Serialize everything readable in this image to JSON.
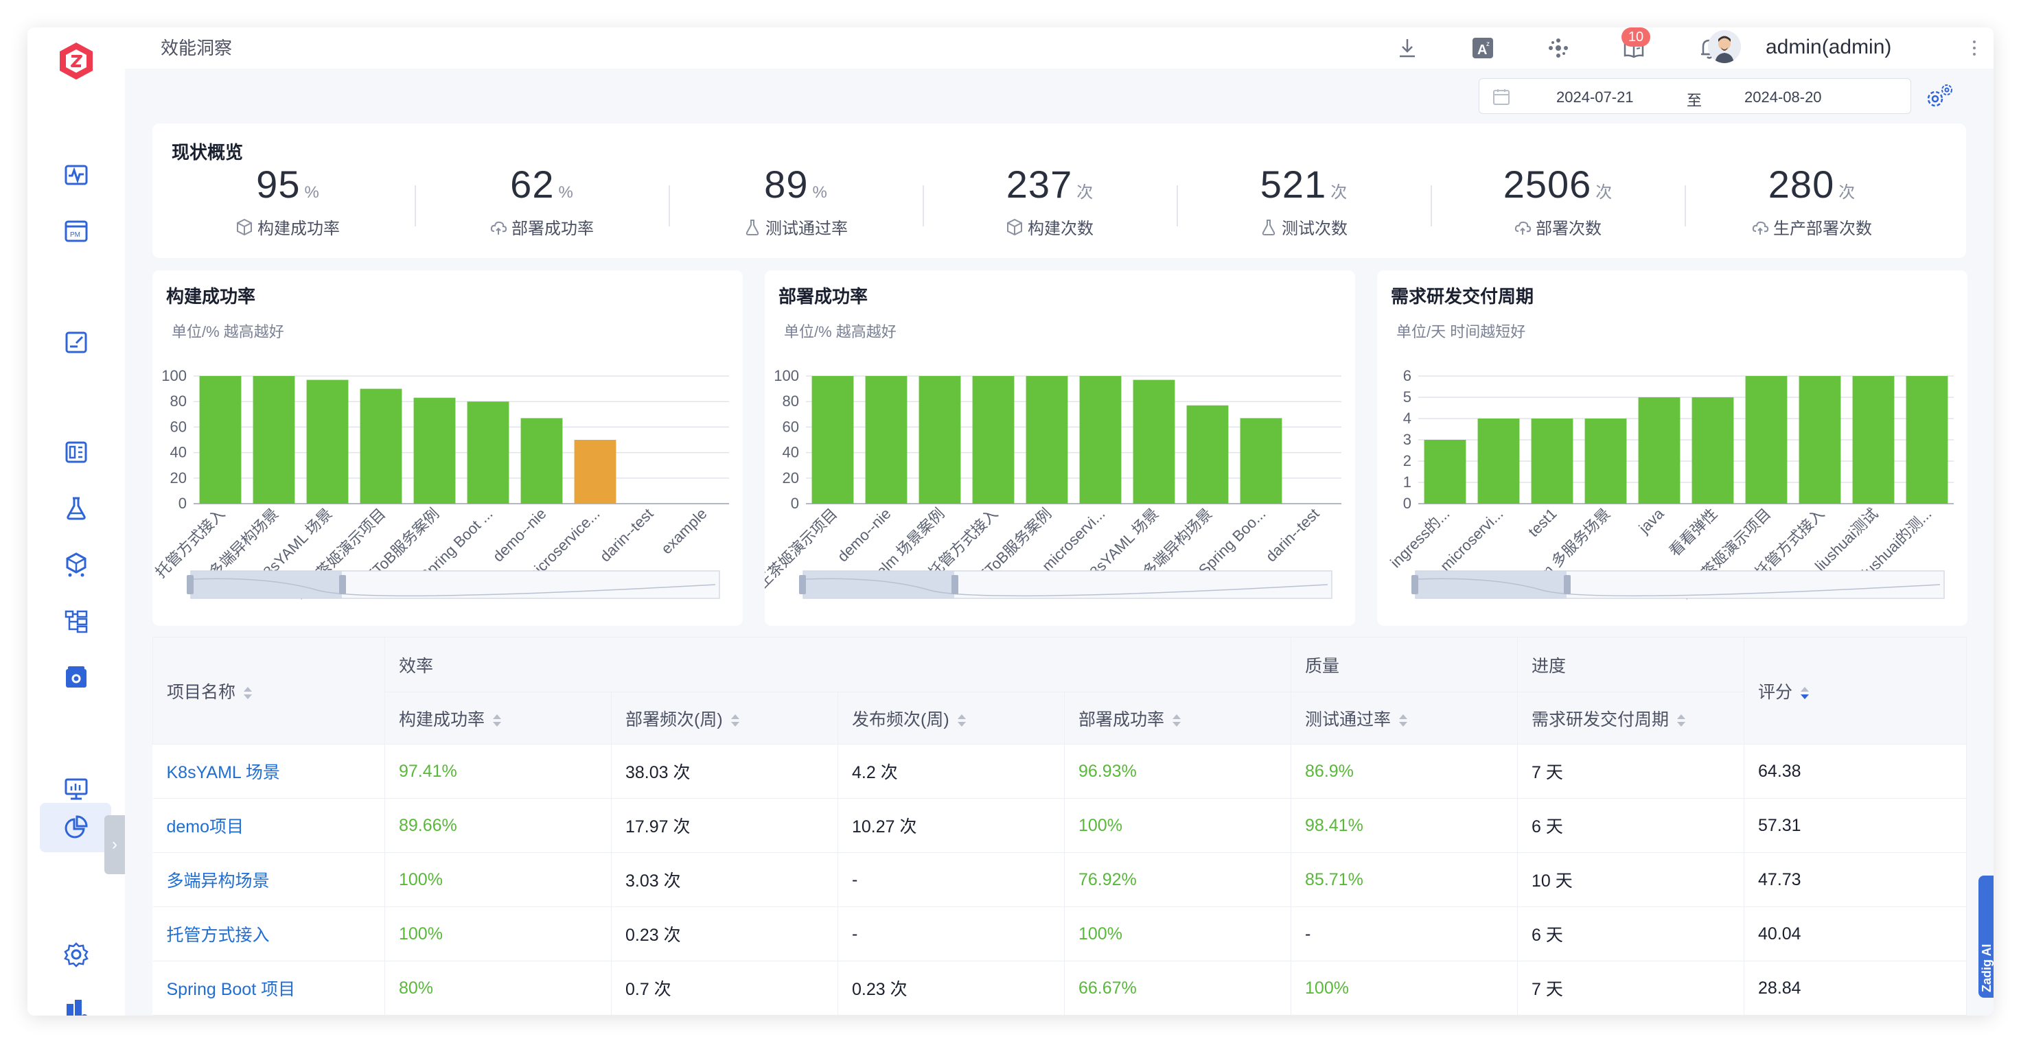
{
  "topbar": {
    "page_title": "效能洞察",
    "notification_count": "10",
    "username": "admin(admin)"
  },
  "date_range": {
    "start": "2024-07-21",
    "separator": "至",
    "end": "2024-08-20"
  },
  "overview": {
    "title": "现状概览",
    "stats": [
      {
        "value": "95",
        "unit": "%",
        "label": "构建成功率",
        "icon": "cube-icon"
      },
      {
        "value": "62",
        "unit": "%",
        "label": "部署成功率",
        "icon": "cloud-icon"
      },
      {
        "value": "89",
        "unit": "%",
        "label": "测试通过率",
        "icon": "flask-icon"
      },
      {
        "value": "237",
        "unit": "次",
        "label": "构建次数",
        "icon": "cube-icon"
      },
      {
        "value": "521",
        "unit": "次",
        "label": "测试次数",
        "icon": "flask-icon"
      },
      {
        "value": "2506",
        "unit": "次",
        "label": "部署次数",
        "icon": "cloud-icon"
      },
      {
        "value": "280",
        "unit": "次",
        "label": "生产部署次数",
        "icon": "cloud-icon"
      }
    ]
  },
  "chart_data": [
    {
      "type": "bar",
      "title": "构建成功率",
      "subtitle": "单位/% 越高越好",
      "categories": [
        "托管方式接入",
        "多端异构场景",
        "K8sYAML 场景",
        "霸王茶姬演示项目",
        "医疗ToB服务案例",
        "Spring Boot ...",
        "demo--nie",
        "microservice...",
        "darin--test",
        "example"
      ],
      "values": [
        100,
        100,
        97,
        90,
        83,
        80,
        67,
        50,
        0,
        0
      ],
      "highlight_color": "#e8a33a",
      "bar_color": "#66c23c",
      "ylim": [
        0,
        100
      ],
      "yticks": [
        0,
        20,
        40,
        60,
        80,
        100
      ]
    },
    {
      "type": "bar",
      "title": "部署成功率",
      "subtitle": "单位/% 越高越好",
      "categories": [
        "霸王茶姬演示项目",
        "demo--nie",
        "Helm 场景案例",
        "托管方式接入",
        "医疗ToB服务案例",
        "microservi...",
        "K8sYAML 场景",
        "多端异构场景",
        "Spring Boo...",
        "darin--test"
      ],
      "values": [
        100,
        100,
        100,
        100,
        100,
        100,
        97,
        77,
        67,
        0
      ],
      "bar_color": "#66c23c",
      "ylim": [
        0,
        100
      ],
      "yticks": [
        0,
        20,
        40,
        60,
        80,
        100
      ]
    },
    {
      "type": "bar",
      "title": "需求研发交付周期",
      "subtitle": "单位/天 时间越短好",
      "categories": [
        "ingress的...",
        "microservi...",
        "test1",
        "Helm 多服务场景",
        "java",
        "看看弹性",
        "霸王茶姬演示项目",
        "托管方式接入",
        "liushuai测试",
        "liushuai的测..."
      ],
      "values": [
        3,
        4,
        4,
        4,
        5,
        5,
        6,
        6,
        6,
        6
      ],
      "bar_color": "#66c23c",
      "ylim": [
        0,
        6
      ],
      "yticks": [
        0,
        1,
        2,
        3,
        4,
        5,
        6
      ]
    }
  ],
  "table": {
    "headers": {
      "project": "项目名称",
      "group_efficiency": "效率",
      "group_quality": "质量",
      "group_progress": "进度",
      "score": "评分",
      "build_rate": "构建成功率",
      "deploy_freq": "部署频次(周)",
      "release_freq": "发布频次(周)",
      "deploy_rate": "部署成功率",
      "test_rate": "测试通过率",
      "cycle": "需求研发交付周期"
    },
    "rows": [
      {
        "name": "K8sYAML 场景",
        "build_rate": "97.41%",
        "deploy_freq": "38.03 次",
        "release_freq": "4.2 次",
        "deploy_rate": "96.93%",
        "test_rate": "86.9%",
        "cycle": "7 天",
        "score": "64.38"
      },
      {
        "name": "demo项目",
        "build_rate": "89.66%",
        "deploy_freq": "17.97 次",
        "release_freq": "10.27 次",
        "deploy_rate": "100%",
        "test_rate": "98.41%",
        "cycle": "6 天",
        "score": "57.31"
      },
      {
        "name": "多端异构场景",
        "build_rate": "100%",
        "deploy_freq": "3.03 次",
        "release_freq": "-",
        "deploy_rate": "76.92%",
        "test_rate": "85.71%",
        "cycle": "10 天",
        "score": "47.73"
      },
      {
        "name": "托管方式接入",
        "build_rate": "100%",
        "deploy_freq": "0.23 次",
        "release_freq": "-",
        "deploy_rate": "100%",
        "test_rate": "-",
        "cycle": "6 天",
        "score": "40.04"
      },
      {
        "name": "Spring Boot 项目",
        "build_rate": "80%",
        "deploy_freq": "0.7 次",
        "release_freq": "0.23 次",
        "deploy_rate": "66.67%",
        "test_rate": "100%",
        "cycle": "7 天",
        "score": "28.84"
      }
    ]
  },
  "side_widget": "Zadig AI",
  "colors": {
    "accent": "#1f6ed4",
    "success": "#59b83a",
    "bar": "#66c23c",
    "warn_bar": "#e8a33a",
    "badge": "#f46b6b"
  }
}
